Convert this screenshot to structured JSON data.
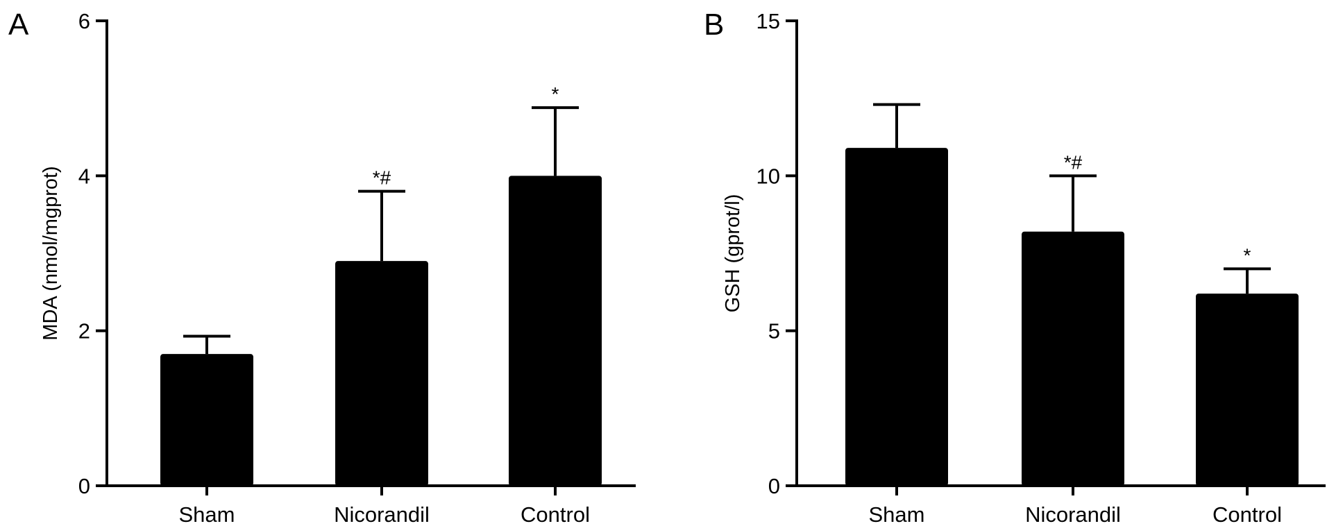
{
  "chart_data": [
    {
      "type": "bar",
      "panel_label": "A",
      "categories": [
        "Sham",
        "Nicorandil",
        "Control"
      ],
      "values": [
        1.7,
        2.9,
        4.0
      ],
      "error_upper": [
        1.93,
        3.8,
        4.88
      ],
      "significance": [
        "",
        "*#",
        "*"
      ],
      "ylabel": "MDA (nmol/mgprot)",
      "ylim": [
        0,
        6
      ],
      "yticks": [
        0,
        2,
        4,
        6
      ],
      "color": "#000000",
      "grid": false
    },
    {
      "type": "bar",
      "panel_label": "B",
      "categories": [
        "Sham",
        "Nicorandil",
        "Control"
      ],
      "values": [
        10.9,
        8.2,
        6.2
      ],
      "error_upper": [
        12.3,
        10.0,
        7.0
      ],
      "significance": [
        "",
        "*#",
        "*"
      ],
      "ylabel": "GSH (gprot/l)",
      "ylim": [
        0,
        15
      ],
      "yticks": [
        0,
        5,
        10,
        15
      ],
      "color": "#000000",
      "grid": false
    }
  ]
}
